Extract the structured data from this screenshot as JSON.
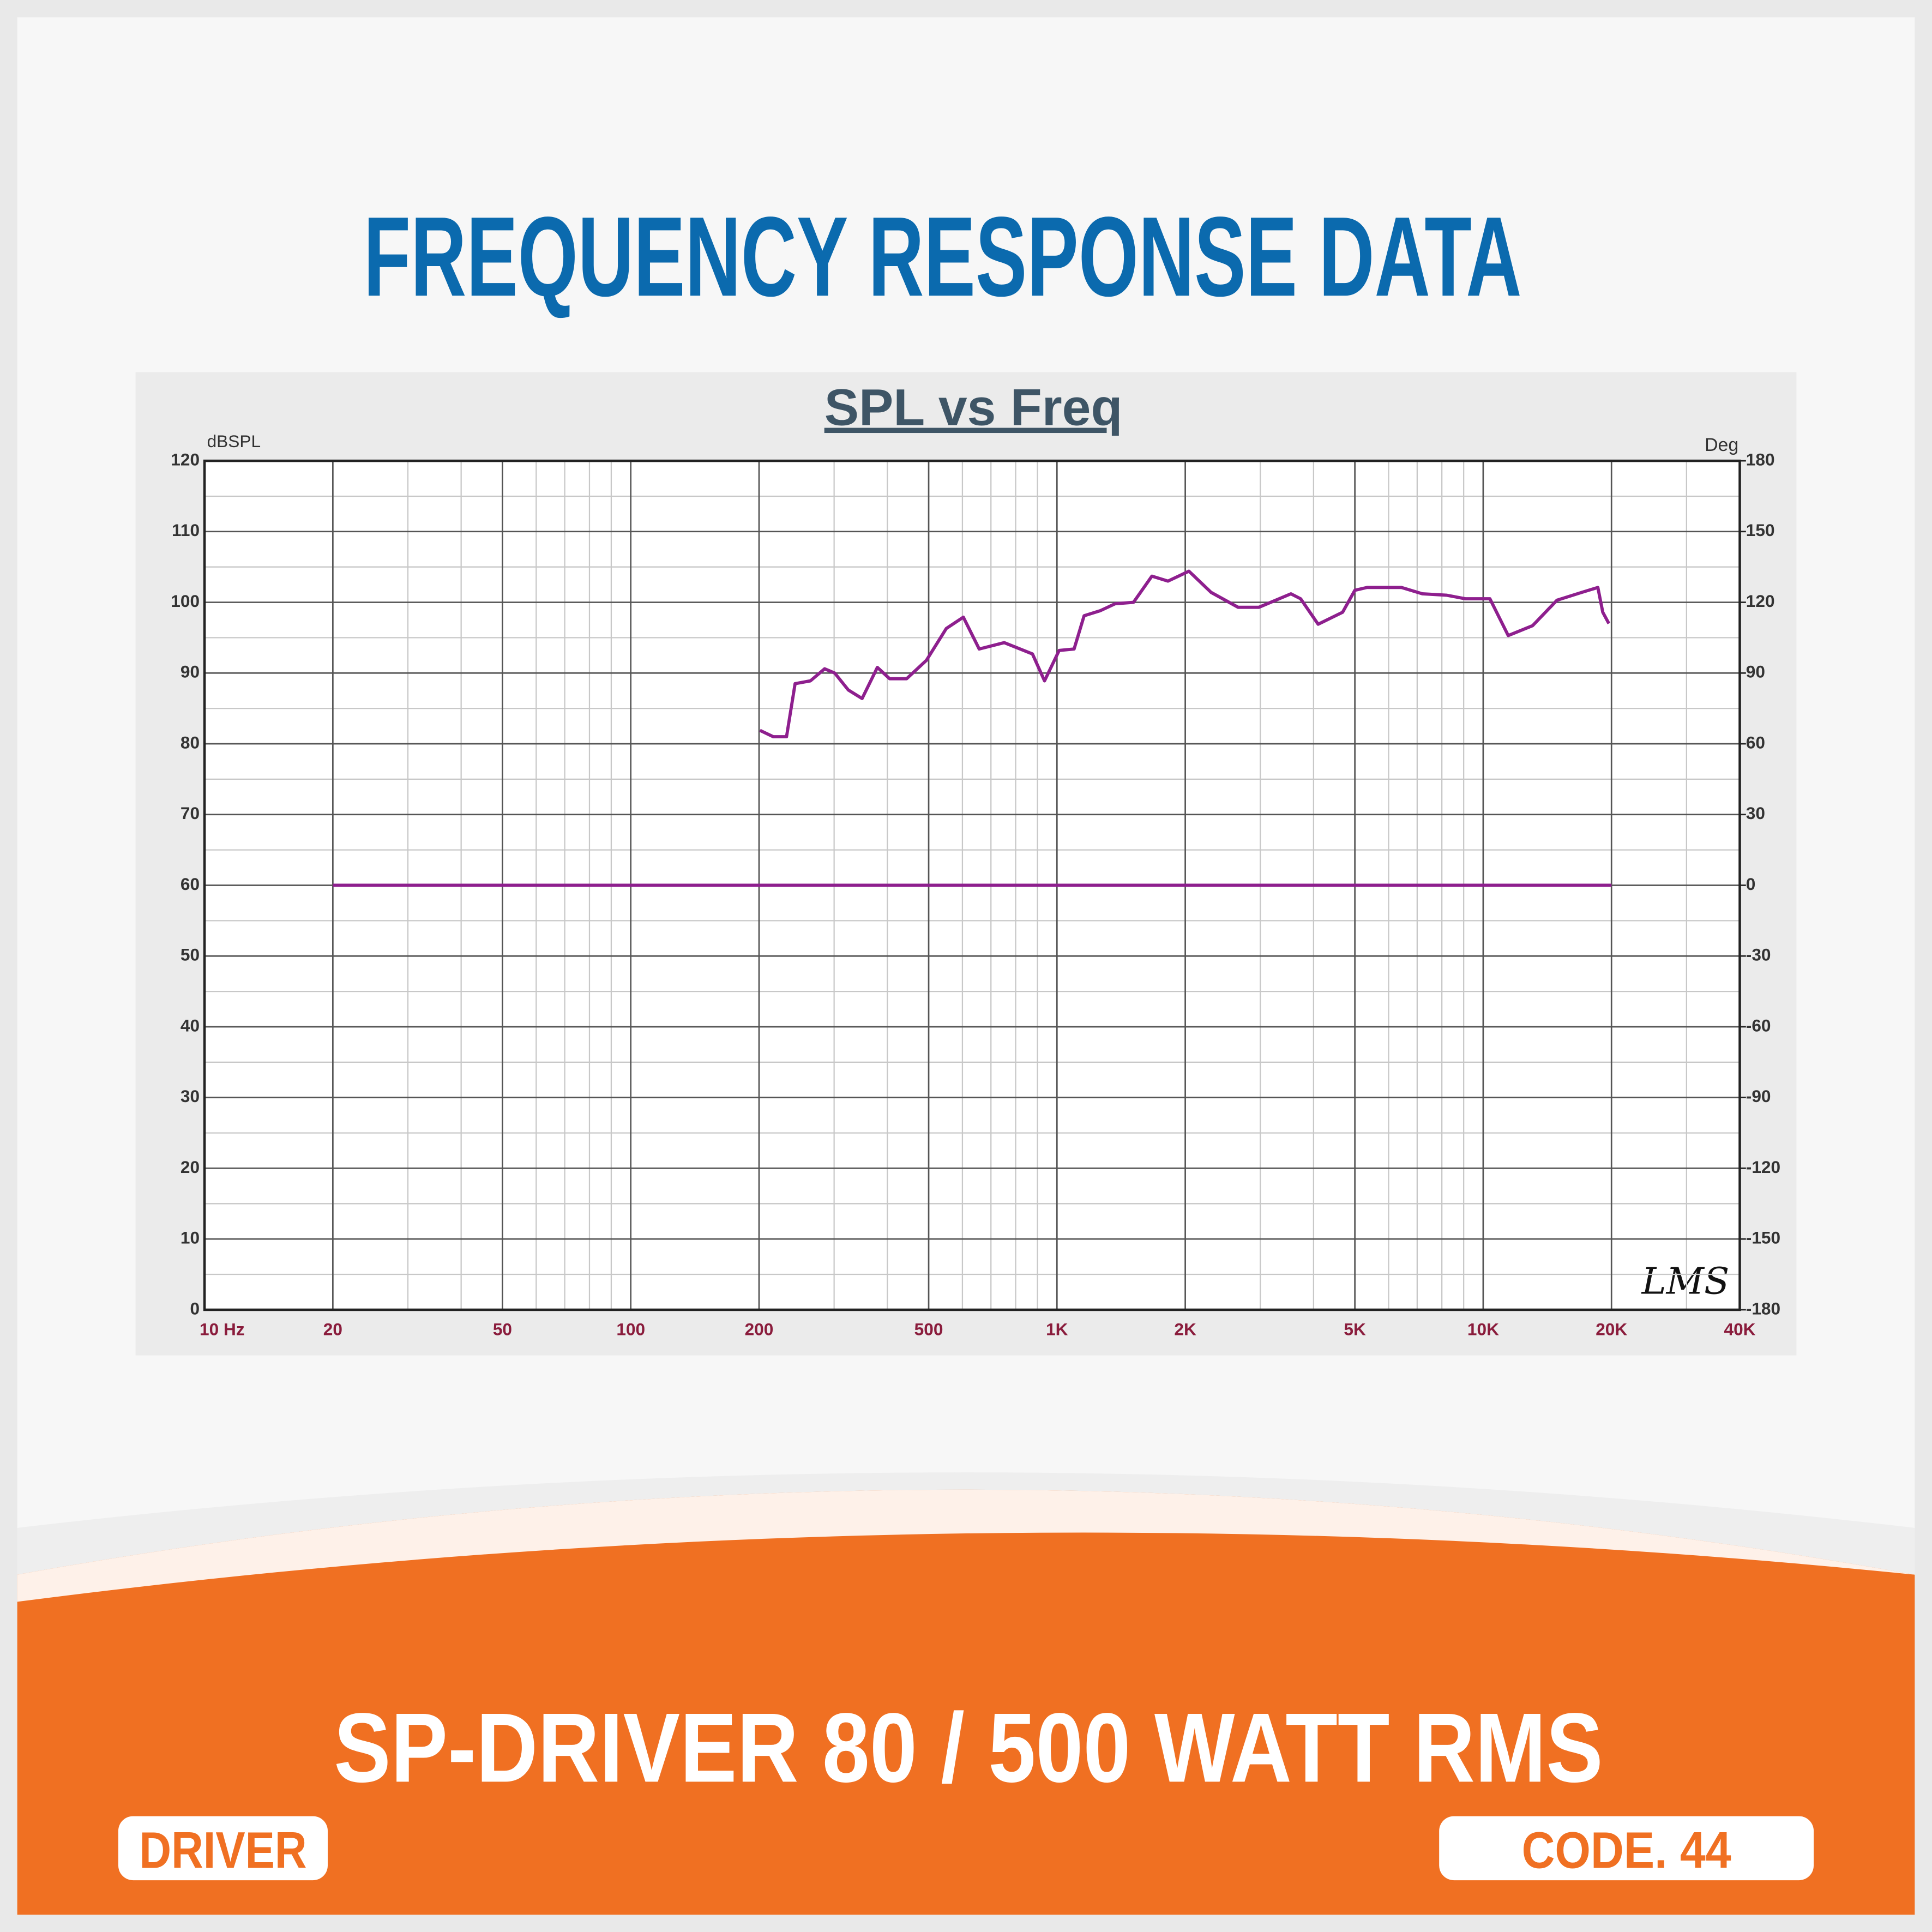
{
  "header": {
    "title": "FREQUENCY RESPONSE DATA"
  },
  "chart_data": {
    "type": "line",
    "title": "SPL vs Freq",
    "y_label": "dBSPL",
    "y2_label": "Deg",
    "watermark": "LMS",
    "xscale": "log",
    "grid": true,
    "xlim": [
      10,
      40000
    ],
    "xticks": [
      {
        "value": 10,
        "label": "10  Hz"
      },
      20,
      50,
      100,
      200,
      500,
      {
        "value": 1000,
        "label": "1K"
      },
      {
        "value": 2000,
        "label": "2K"
      },
      {
        "value": 5000,
        "label": "5K"
      },
      {
        "value": 10000,
        "label": "10K"
      },
      {
        "value": 20000,
        "label": "20K"
      },
      {
        "value": 40000,
        "label": "40K"
      }
    ],
    "ylim": [
      0,
      120
    ],
    "yticks": [
      0,
      10,
      20,
      30,
      40,
      50,
      60,
      70,
      80,
      90,
      100,
      110,
      120
    ],
    "y2lim": [
      -180,
      180
    ],
    "y2ticks": [
      -180,
      -150,
      -120,
      -90,
      -60,
      -30,
      0,
      30,
      60,
      90,
      120,
      150,
      180
    ],
    "series": [
      {
        "color": "#8e1f8e",
        "x": [
          201,
          216,
          232,
          243,
          264,
          285,
          301,
          324,
          349,
          379,
          405,
          444,
          494,
          550,
          603,
          657,
          752,
          876,
          935,
          1012,
          1097,
          1158,
          1262,
          1370,
          1512,
          1670,
          1822,
          2040,
          2300,
          2660,
          2978,
          3540,
          3730,
          4100,
          4680,
          5000,
          5340,
          6430,
          7200,
          8220,
          9080,
          10370,
          11450,
          13060,
          14900,
          17030,
          18580,
          19080,
          19720
        ],
        "values": [
          81.9,
          81,
          81,
          88.5,
          88.9,
          90.6,
          90,
          87.6,
          86.4,
          90.8,
          89.2,
          89.2,
          91.8,
          96.3,
          97.9,
          93.4,
          94.3,
          92.7,
          88.9,
          93.2,
          93.4,
          98.1,
          98.8,
          99.8,
          100,
          103.7,
          103,
          104.4,
          101.4,
          99.3,
          99.3,
          101.2,
          100.5,
          96.9,
          98.6,
          101.7,
          102.1,
          102.1,
          101.2,
          101,
          100.5,
          100.5,
          95.3,
          96.7,
          100.3,
          101.4,
          102.1,
          98.6,
          97
        ]
      },
      {
        "color": "#8e1f8e",
        "axis": "y2",
        "x": [
          20,
          20000
        ],
        "values": [
          0,
          0
        ]
      }
    ]
  },
  "footer": {
    "product": "SP-DRIVER 80 / 500 WATT RMS",
    "category": "DRIVER",
    "code": "CODE. 44"
  }
}
